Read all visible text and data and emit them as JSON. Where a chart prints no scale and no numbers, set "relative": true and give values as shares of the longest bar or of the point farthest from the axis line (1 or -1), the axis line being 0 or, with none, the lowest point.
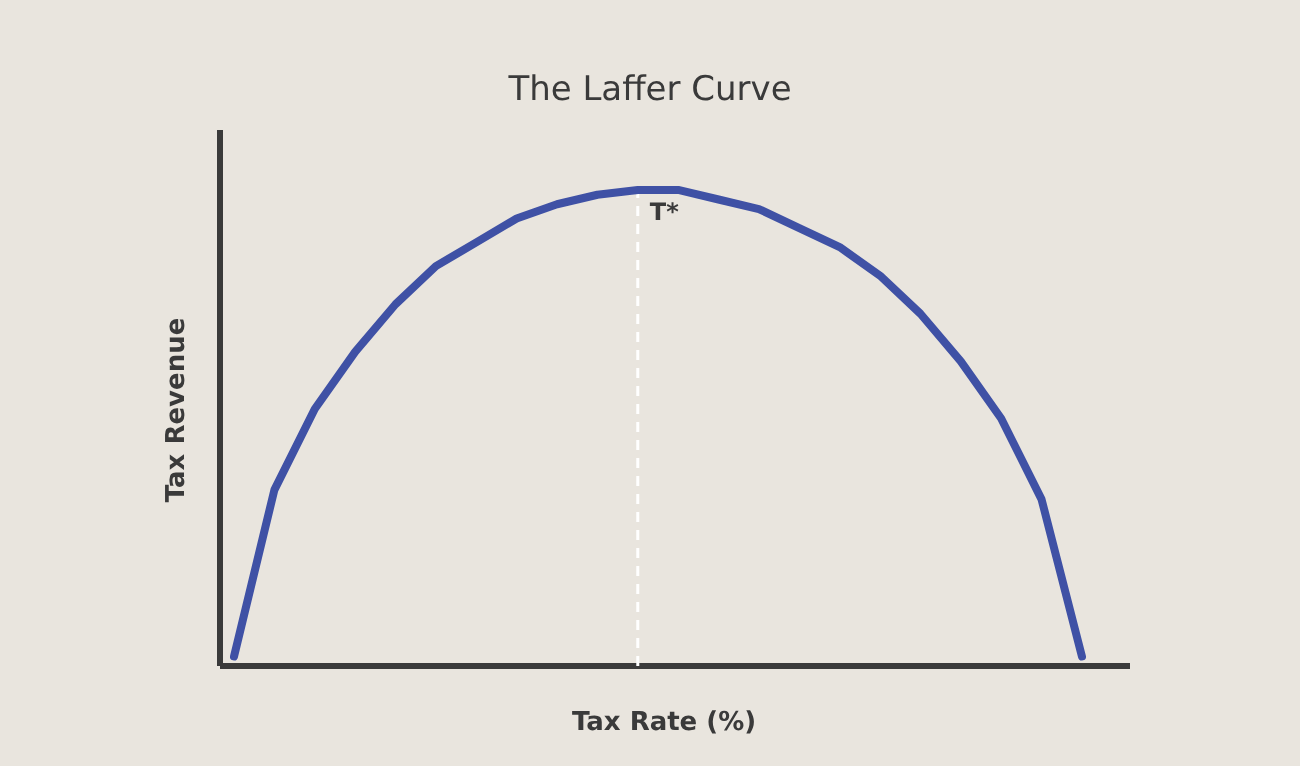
{
  "chart_data": {
    "type": "line",
    "title": "The Laffer Curve",
    "xlabel": "Tax Rate (%)",
    "ylabel": "Tax Revenue",
    "relative": true,
    "categories": [
      null,
      null,
      null,
      null,
      null,
      null,
      null,
      null,
      null,
      null,
      null,
      null,
      null,
      null,
      null,
      null,
      null,
      null,
      null,
      null,
      null,
      null
    ],
    "series": [
      {
        "color": "#3f51a5",
        "values": [
          0.02,
          0.37,
          0.54,
          0.66,
          0.76,
          0.84,
          0.89,
          0.94,
          0.97,
          0.99,
          1.0,
          1.0,
          0.98,
          0.96,
          0.92,
          0.88,
          0.82,
          0.74,
          0.64,
          0.52,
          0.35,
          0.02
        ]
      }
    ],
    "annotations": [
      "T*"
    ]
  }
}
